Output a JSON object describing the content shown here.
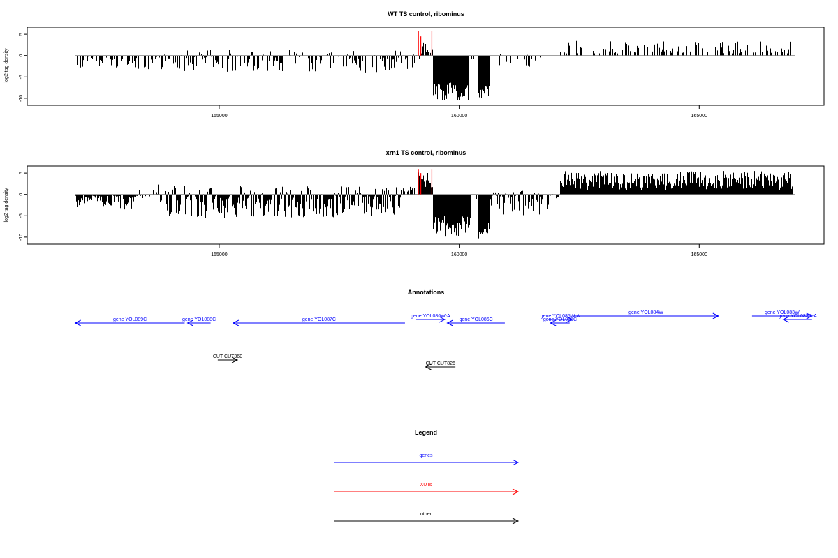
{
  "chart_data": [
    {
      "type": "bar",
      "title": "WT TS control, ribominus",
      "xlabel": "",
      "ylabel": "log2 tag density",
      "xlim": [
        151000,
        167600
      ],
      "ylim": [
        -11,
        6
      ],
      "xticks": [
        155000,
        160000,
        165000
      ],
      "xtick_labels": [
        "155000",
        "160000",
        "165000"
      ],
      "yticks": [
        5,
        0,
        -5,
        -10
      ],
      "ytick_labels": [
        "5",
        "0",
        "-5",
        "-10"
      ],
      "baseline_range": [
        152000,
        167000
      ],
      "colors": {
        "bars": "#000000",
        "xut_peaks": "#ff0000",
        "baseline": "#808080"
      },
      "regions": [
        {
          "from": 152000,
          "to": 154200,
          "min": -3.2,
          "max": 0.3,
          "density": 0.55
        },
        {
          "from": 154200,
          "to": 158800,
          "min": -4.0,
          "max": 1.5,
          "density": 0.6
        },
        {
          "from": 158800,
          "to": 159200,
          "min": -3.5,
          "max": 0.5,
          "density": 0.3
        },
        {
          "from": 159200,
          "to": 159450,
          "min": 0.5,
          "max": 3.5,
          "density": 0.8
        },
        {
          "from": 159450,
          "to": 160200,
          "min": -10.5,
          "max": -6.0,
          "density": 1.0
        },
        {
          "from": 160200,
          "to": 160400,
          "min": -1.0,
          "max": 0.0,
          "density": 0.2
        },
        {
          "from": 160400,
          "to": 160650,
          "min": -10.0,
          "max": -7.0,
          "density": 1.0
        },
        {
          "from": 160650,
          "to": 161700,
          "min": -3.5,
          "max": 0.3,
          "density": 0.4
        },
        {
          "from": 161700,
          "to": 162100,
          "min": -0.5,
          "max": 0.5,
          "density": 0.1
        },
        {
          "from": 162100,
          "to": 166900,
          "min": 0.5,
          "max": 3.5,
          "density": 0.35
        }
      ],
      "xut_peaks": [
        159150,
        159200,
        159430
      ],
      "xut_peak_heights": [
        5.8,
        4.5,
        5.8
      ]
    },
    {
      "type": "bar",
      "title": "xrn1 TS control, ribominus",
      "xlabel": "",
      "ylabel": "log2 tag density",
      "xlim": [
        151000,
        167600
      ],
      "ylim": [
        -11,
        6
      ],
      "xticks": [
        155000,
        160000,
        165000
      ],
      "xtick_labels": [
        "155000",
        "160000",
        "165000"
      ],
      "yticks": [
        5,
        0,
        -5,
        -10
      ],
      "ytick_labels": [
        "5",
        "0",
        "-5",
        "-10"
      ],
      "baseline_range": [
        152000,
        167000
      ],
      "colors": {
        "bars": "#000000",
        "xut_peaks": "#ff0000",
        "baseline": "#808080"
      },
      "regions": [
        {
          "from": 152000,
          "to": 153300,
          "min": -3.5,
          "max": -0.3,
          "density": 0.9
        },
        {
          "from": 153300,
          "to": 153900,
          "min": -2.0,
          "max": 2.5,
          "density": 0.5
        },
        {
          "from": 153900,
          "to": 158800,
          "min": -5.5,
          "max": 2.0,
          "density": 0.95
        },
        {
          "from": 158800,
          "to": 159150,
          "min": 0.5,
          "max": 2.0,
          "density": 0.3
        },
        {
          "from": 159150,
          "to": 159450,
          "min": 1.5,
          "max": 5.5,
          "density": 1.0
        },
        {
          "from": 159450,
          "to": 160250,
          "min": -10.0,
          "max": -5.0,
          "density": 1.0
        },
        {
          "from": 160250,
          "to": 160400,
          "min": -1.5,
          "max": -0.5,
          "density": 0.3
        },
        {
          "from": 160400,
          "to": 160650,
          "min": -10.5,
          "max": -6.0,
          "density": 1.0
        },
        {
          "from": 160650,
          "to": 161900,
          "min": -5.0,
          "max": 1.0,
          "density": 0.85
        },
        {
          "from": 161900,
          "to": 162100,
          "min": -1.5,
          "max": 0.5,
          "density": 0.2
        },
        {
          "from": 162100,
          "to": 166950,
          "min": 1.0,
          "max": 5.5,
          "density": 1.0
        }
      ],
      "xut_peaks": [
        159150,
        159200,
        159430
      ],
      "xut_peak_heights": [
        5.8,
        5.0,
        5.8
      ]
    }
  ],
  "annotations": {
    "title": "Annotations",
    "xlim": [
      151000,
      167600
    ],
    "features": [
      {
        "label": "gene YOL089C",
        "start": 152000,
        "end": 154280,
        "strand": "-",
        "kind": "gene",
        "row": 2
      },
      {
        "label": "gene YOL088C",
        "start": 154340,
        "end": 154820,
        "strand": "-",
        "kind": "gene",
        "row": 2
      },
      {
        "label": "gene YOL087C",
        "start": 155290,
        "end": 158870,
        "strand": "-",
        "kind": "gene",
        "row": 2
      },
      {
        "label": "gene YOL086W-A",
        "start": 159100,
        "end": 159700,
        "strand": "+",
        "kind": "gene",
        "row": 1
      },
      {
        "label": "gene YOL086C",
        "start": 159750,
        "end": 160950,
        "strand": "-",
        "kind": "gene",
        "row": 2
      },
      {
        "label": "gene YOL085W-A",
        "start": 161850,
        "end": 162350,
        "strand": "+",
        "kind": "gene",
        "row": 1
      },
      {
        "label": "gene YOL085C",
        "start": 161900,
        "end": 162300,
        "strand": "-",
        "kind": "gene",
        "row": 2
      },
      {
        "label": "gene YOL084W",
        "start": 162380,
        "end": 165400,
        "strand": "+",
        "kind": "gene",
        "row": 0
      },
      {
        "label": "gene YOL083W",
        "start": 166100,
        "end": 167350,
        "strand": "+",
        "kind": "gene",
        "row": 0
      },
      {
        "label": "gene YOL083C-A",
        "start": 166750,
        "end": 167350,
        "strand": "-",
        "kind": "gene",
        "row": 1
      },
      {
        "label": "CUT CUT360",
        "start": 154970,
        "end": 155380,
        "strand": "+",
        "kind": "other",
        "row": 3
      },
      {
        "label": "CUT CUT826",
        "start": 159300,
        "end": 159920,
        "strand": "-",
        "kind": "other",
        "row": 4
      }
    ]
  },
  "legend": {
    "title": "Legend",
    "entries": [
      {
        "label": "genes",
        "color": "#0000ff"
      },
      {
        "label": "XUTs",
        "color": "#ff0000"
      },
      {
        "label": "other",
        "color": "#000000"
      }
    ]
  }
}
